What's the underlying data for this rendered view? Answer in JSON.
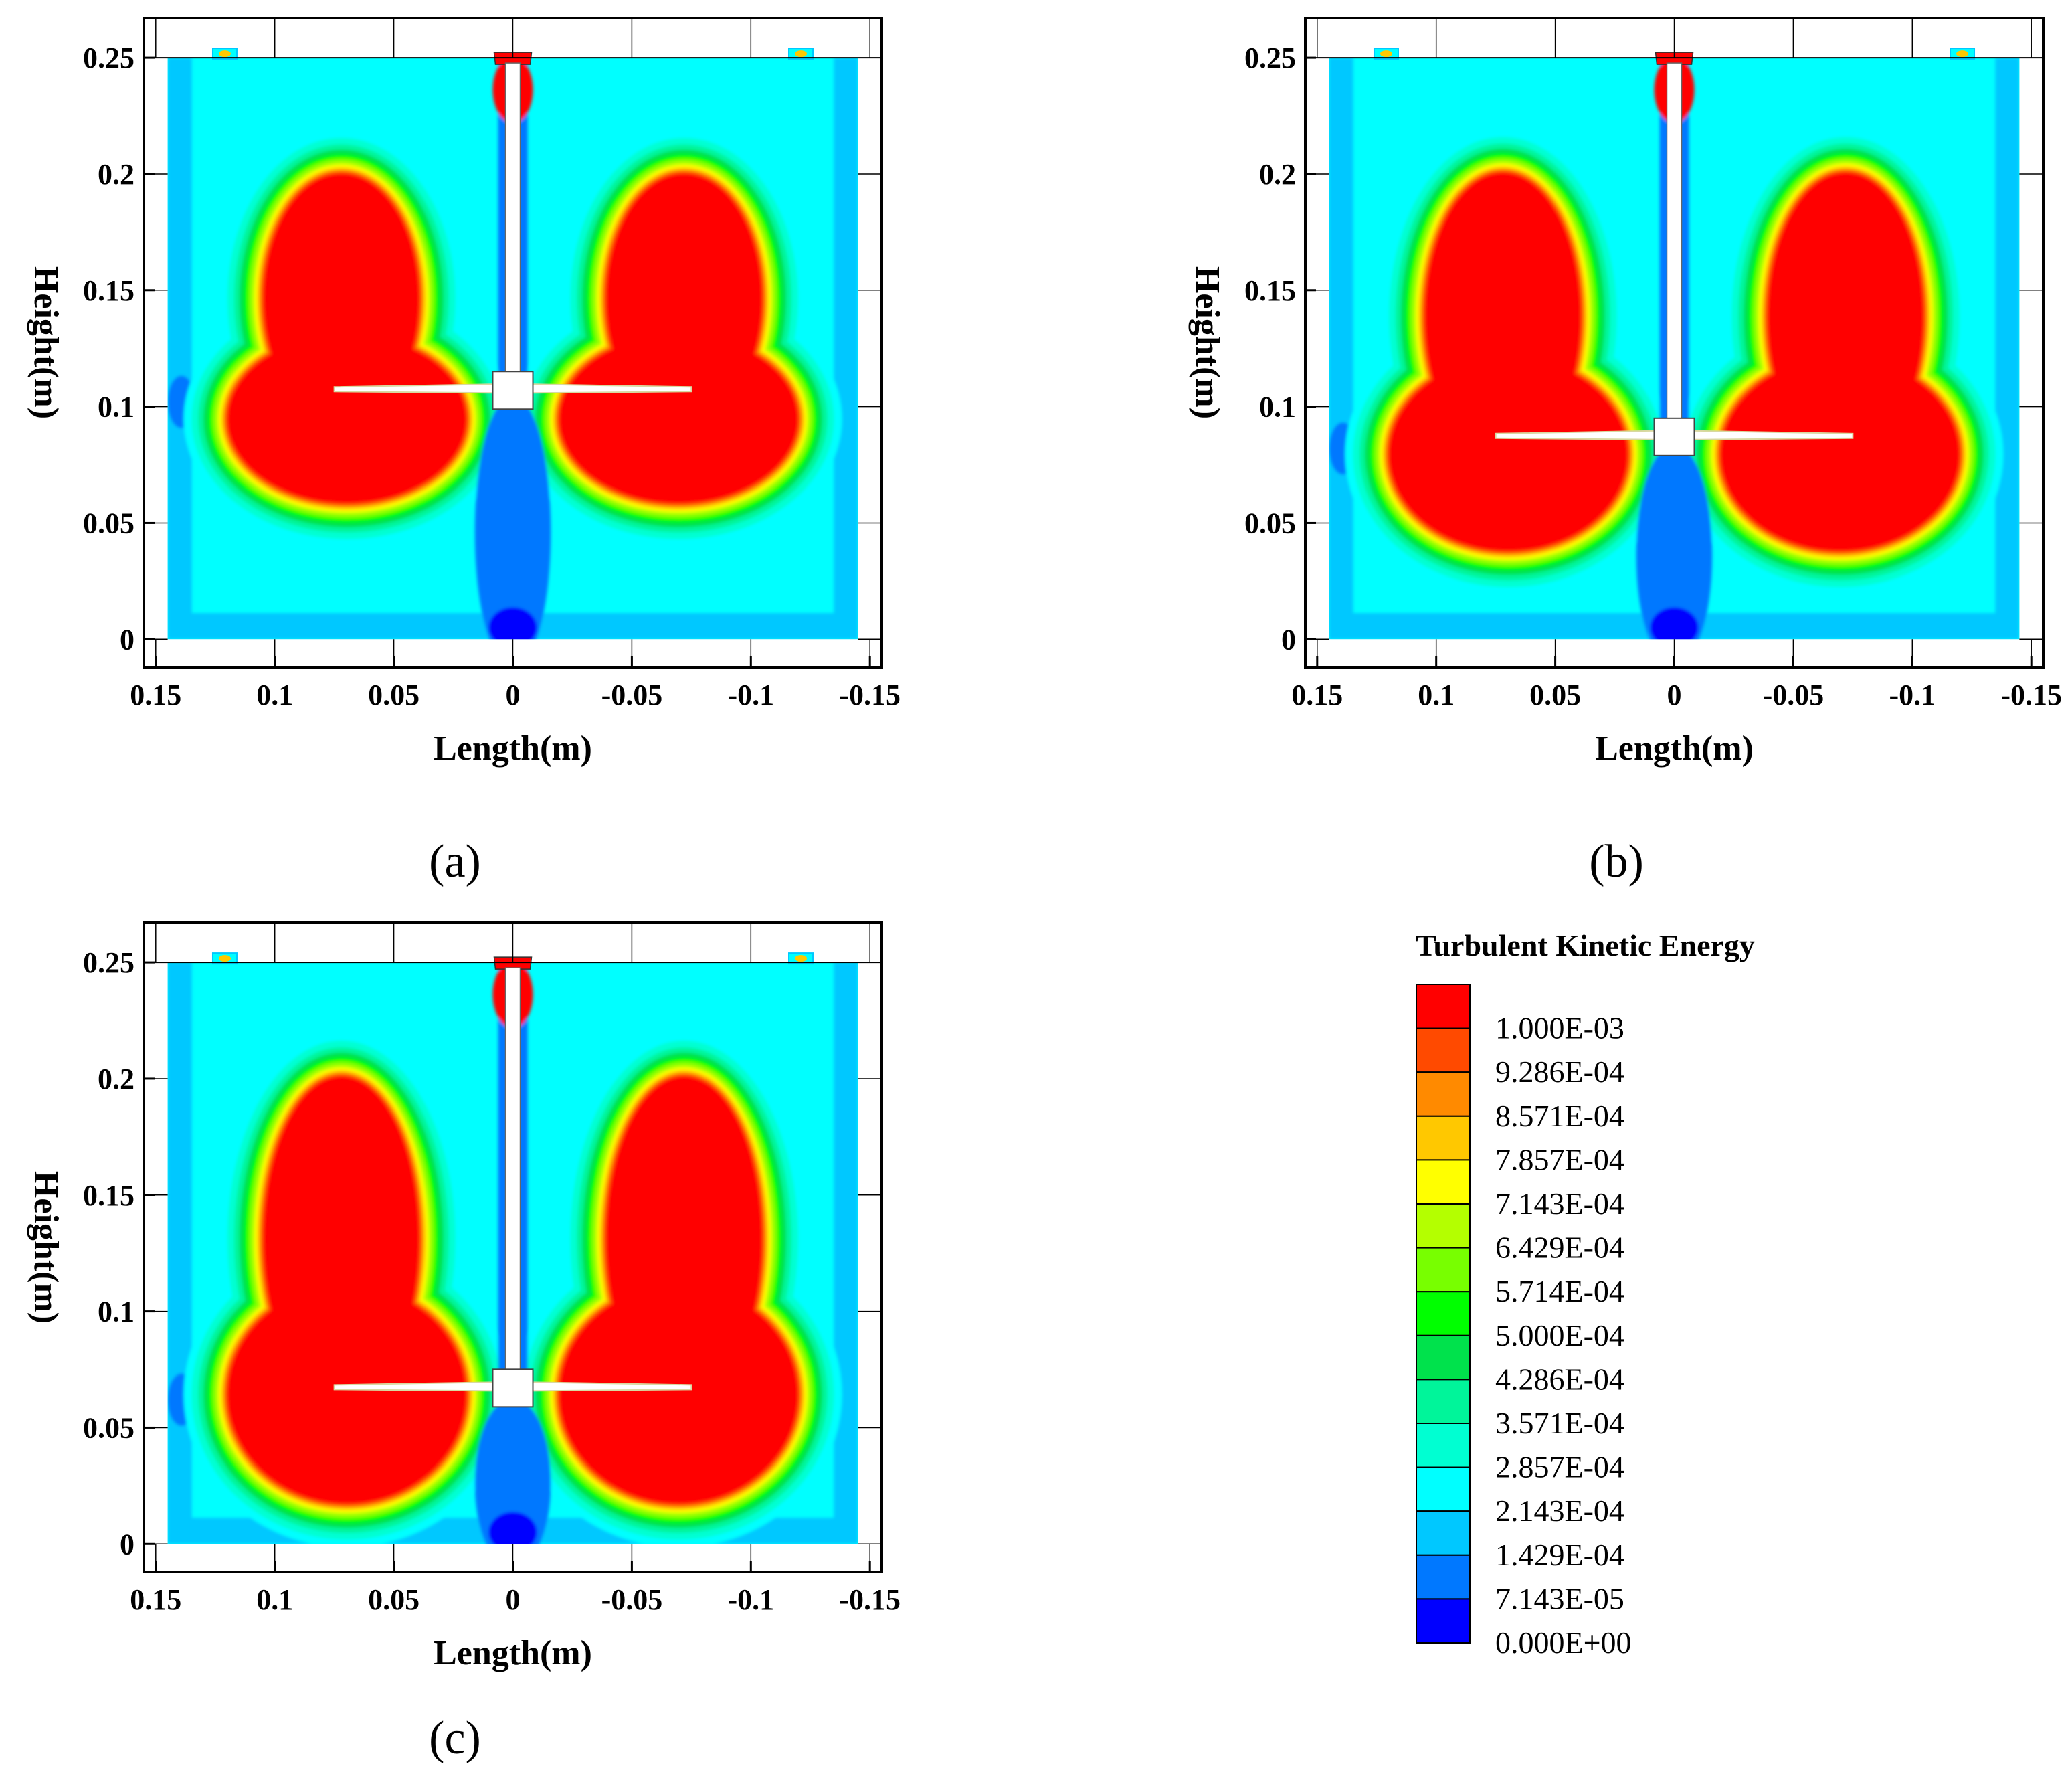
{
  "chart_data": [
    {
      "type": "contour",
      "panel_label": "(a)",
      "xlabel": "Length(m)",
      "ylabel": "Height(m)",
      "xlim": [
        0.155,
        -0.155
      ],
      "ylim": [
        -0.012,
        0.267
      ],
      "xticks": [
        0.15,
        0.1,
        0.05,
        0,
        -0.05,
        -0.1,
        -0.15
      ],
      "xtick_labels": [
        "0.15",
        "0.1",
        "0.05",
        "0",
        "-0.05",
        "-0.1",
        "-0.15"
      ],
      "yticks": [
        0,
        0.05,
        0.1,
        0.15,
        0.2,
        0.25
      ],
      "ytick_labels": [
        "0",
        "0.05",
        "0.1",
        "0.15",
        "0.2",
        "0.25"
      ],
      "tank_half_width": 0.145,
      "liquid_height": 0.25,
      "impeller_height": 0.107,
      "impeller_radius": 0.075
    },
    {
      "type": "contour",
      "panel_label": "(b)",
      "xlabel": "Length(m)",
      "ylabel": "Height(m)",
      "xlim": [
        0.155,
        -0.155
      ],
      "ylim": [
        -0.012,
        0.267
      ],
      "xticks": [
        0.15,
        0.1,
        0.05,
        0,
        -0.05,
        -0.1,
        -0.15
      ],
      "xtick_labels": [
        "0.15",
        "0.1",
        "0.05",
        "0",
        "-0.05",
        "-0.1",
        "-0.15"
      ],
      "yticks": [
        0,
        0.05,
        0.1,
        0.15,
        0.2,
        0.25
      ],
      "ytick_labels": [
        "0",
        "0.05",
        "0.1",
        "0.15",
        "0.2",
        "0.25"
      ],
      "tank_half_width": 0.145,
      "liquid_height": 0.25,
      "impeller_height": 0.087,
      "impeller_radius": 0.075
    },
    {
      "type": "contour",
      "panel_label": "(c)",
      "xlabel": "Length(m)",
      "ylabel": "Height(m)",
      "xlim": [
        0.155,
        -0.155
      ],
      "ylim": [
        -0.012,
        0.267
      ],
      "xticks": [
        0.15,
        0.1,
        0.05,
        0,
        -0.05,
        -0.1,
        -0.15
      ],
      "xtick_labels": [
        "0.15",
        "0.1",
        "0.05",
        "0",
        "-0.05",
        "-0.1",
        "-0.15"
      ],
      "yticks": [
        0,
        0.05,
        0.1,
        0.15,
        0.2,
        0.25
      ],
      "ytick_labels": [
        "0",
        "0.05",
        "0.1",
        "0.15",
        "0.2",
        "0.25"
      ],
      "tank_half_width": 0.145,
      "liquid_height": 0.25,
      "impeller_height": 0.067,
      "impeller_radius": 0.075
    }
  ],
  "legend": {
    "title": "Turbulent Kinetic Energy",
    "levels": [
      {
        "label": "1.000E-03",
        "color": "#ff0000"
      },
      {
        "label": "9.286E-04",
        "color": "#ff4a00"
      },
      {
        "label": "8.571E-04",
        "color": "#ff8a00"
      },
      {
        "label": "7.857E-04",
        "color": "#ffc800"
      },
      {
        "label": "7.143E-04",
        "color": "#ffff00"
      },
      {
        "label": "6.429E-04",
        "color": "#b4ff00"
      },
      {
        "label": "5.714E-04",
        "color": "#78ff00"
      },
      {
        "label": "5.000E-04",
        "color": "#00ff00"
      },
      {
        "label": "4.286E-04",
        "color": "#00e24c"
      },
      {
        "label": "3.571E-04",
        "color": "#00f59a"
      },
      {
        "label": "2.857E-04",
        "color": "#00ffd2"
      },
      {
        "label": "2.143E-04",
        "color": "#00ffff"
      },
      {
        "label": "1.429E-04",
        "color": "#00c8ff"
      },
      {
        "label": "7.143E-05",
        "color": "#0078ff"
      },
      {
        "label": "0.000E+00",
        "color": "#0000ff"
      }
    ]
  }
}
